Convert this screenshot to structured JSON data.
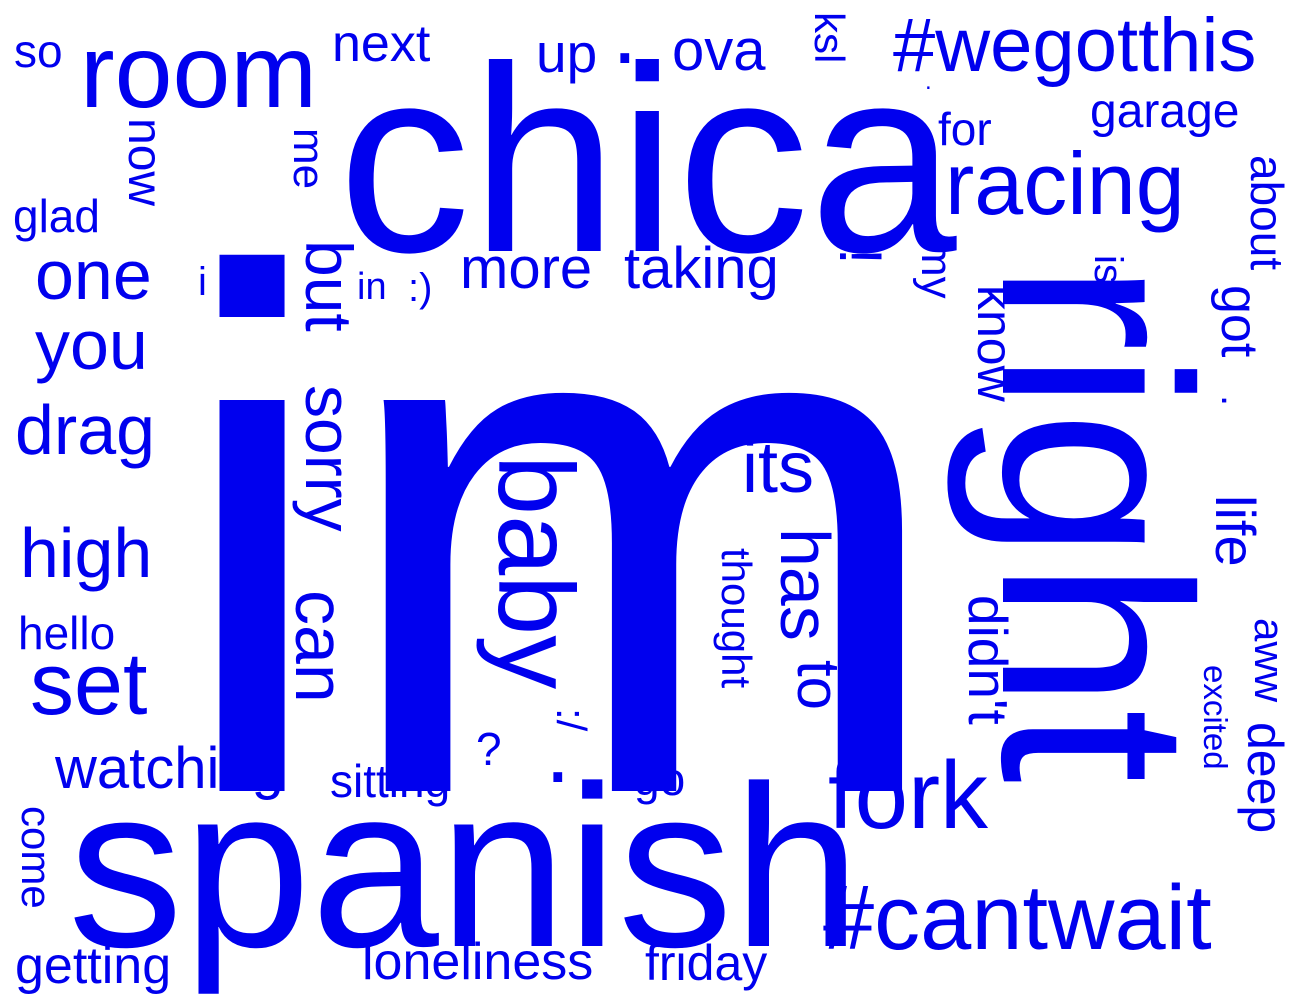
{
  "word_color": "#0000EE",
  "background": "#FFFFFF",
  "words": [
    {
      "text": "im",
      "orientation": "horizontal"
    },
    {
      "text": "chica",
      "orientation": "horizontal"
    },
    {
      "text": "spanish",
      "orientation": "horizontal"
    },
    {
      "text": "right",
      "orientation": "vertical"
    },
    {
      "text": "room",
      "orientation": "horizontal"
    },
    {
      "text": "racing",
      "orientation": "horizontal"
    },
    {
      "text": "#wegotthis",
      "orientation": "horizontal"
    },
    {
      "text": "#cantwait",
      "orientation": "horizontal"
    },
    {
      "text": "fork",
      "orientation": "horizontal"
    },
    {
      "text": "baby",
      "orientation": "vertical"
    },
    {
      "text": "set",
      "orientation": "horizontal"
    },
    {
      "text": "high",
      "orientation": "horizontal"
    },
    {
      "text": "drag",
      "orientation": "horizontal"
    },
    {
      "text": "one",
      "orientation": "horizontal"
    },
    {
      "text": "you",
      "orientation": "horizontal"
    },
    {
      "text": "more",
      "orientation": "horizontal"
    },
    {
      "text": "taking",
      "orientation": "horizontal"
    },
    {
      "text": "watching",
      "orientation": "horizontal"
    },
    {
      "text": "its",
      "orientation": "horizontal"
    },
    {
      "text": "sorry",
      "orientation": "vertical"
    },
    {
      "text": "can",
      "orientation": "vertical"
    },
    {
      "text": "but",
      "orientation": "vertical"
    },
    {
      "text": "has",
      "orientation": "vertical"
    },
    {
      "text": "to",
      "orientation": "vertical"
    },
    {
      "text": "next",
      "orientation": "horizontal"
    },
    {
      "text": "ova",
      "orientation": "horizontal"
    },
    {
      "text": "up",
      "orientation": "horizontal"
    },
    {
      "text": "garage",
      "orientation": "horizontal"
    },
    {
      "text": "for",
      "orientation": "horizontal"
    },
    {
      "text": "loneliness",
      "orientation": "horizontal"
    },
    {
      "text": "friday",
      "orientation": "horizontal"
    },
    {
      "text": "getting",
      "orientation": "horizontal"
    },
    {
      "text": "sitting",
      "orientation": "horizontal"
    },
    {
      "text": "hello",
      "orientation": "horizontal"
    },
    {
      "text": "glad",
      "orientation": "horizontal"
    },
    {
      "text": "so",
      "orientation": "horizontal"
    },
    {
      "text": "go",
      "orientation": "horizontal"
    },
    {
      "text": "now",
      "orientation": "vertical"
    },
    {
      "text": "me",
      "orientation": "vertical"
    },
    {
      "text": "about",
      "orientation": "vertical"
    },
    {
      "text": "got",
      "orientation": "vertical"
    },
    {
      "text": "life",
      "orientation": "vertical"
    },
    {
      "text": "know",
      "orientation": "vertical"
    },
    {
      "text": "didn't",
      "orientation": "vertical"
    },
    {
      "text": "thought",
      "orientation": "vertical"
    },
    {
      "text": "aww",
      "orientation": "vertical"
    },
    {
      "text": "deep",
      "orientation": "vertical"
    },
    {
      "text": "excited",
      "orientation": "vertical"
    },
    {
      "text": "come",
      "orientation": "vertical"
    },
    {
      "text": "my",
      "orientation": "vertical"
    },
    {
      "text": "is",
      "orientation": "vertical"
    },
    {
      "text": "ksl",
      "orientation": "vertical"
    },
    {
      "text": "in",
      "orientation": "horizontal"
    },
    {
      "text": ":)",
      "orientation": "horizontal"
    },
    {
      "text": "i",
      "orientation": "horizontal"
    },
    {
      "text": "?",
      "orientation": "horizontal"
    },
    {
      "text": "!",
      "orientation": "vertical"
    },
    {
      "text": ":/",
      "orientation": "vertical"
    },
    {
      "text": ".",
      "orientation": "horizontal"
    },
    {
      "text": ".",
      "orientation": "horizontal"
    },
    {
      "text": ".",
      "orientation": "vertical"
    },
    {
      "text": ".",
      "orientation": "horizontal"
    },
    {
      "text": ",",
      "orientation": "horizontal"
    },
    {
      "text": "",
      "orientation": "horizontal"
    }
  ]
}
